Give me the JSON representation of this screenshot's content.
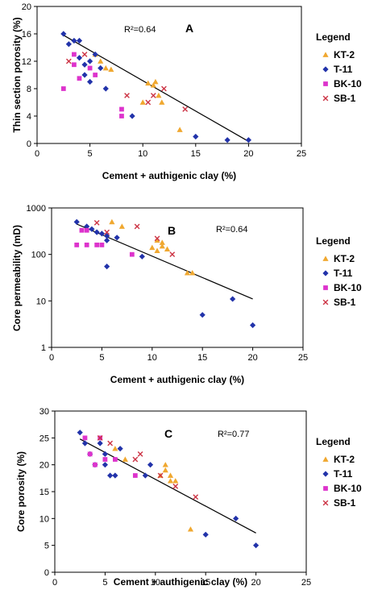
{
  "chart_data": [
    {
      "type": "scatter",
      "panel": "A",
      "xlabel": "Cement + authigenic clay (%)",
      "ylabel": "Thin section porosity (%)",
      "xlim": [
        0,
        25
      ],
      "ylim": [
        0,
        20
      ],
      "y_scale": "linear",
      "xticks": [
        "0",
        "5",
        "10",
        "15",
        "20",
        "25"
      ],
      "yticks": [
        "0",
        "4",
        "8",
        "12",
        "16",
        "20"
      ],
      "annotation": "R²=0.64",
      "legend_title": "Legend",
      "trendline": [
        [
          2.5,
          15.8
        ],
        [
          20,
          0.3
        ]
      ],
      "series": [
        {
          "name": "KT-2",
          "marker": "triangle",
          "color": "#F0A830",
          "points": [
            [
              5.5,
              13
            ],
            [
              6,
              12
            ],
            [
              6.5,
              11
            ],
            [
              7,
              10.8
            ],
            [
              10,
              6
            ],
            [
              10.5,
              8.8
            ],
            [
              11,
              8.5
            ],
            [
              11.2,
              9
            ],
            [
              11.5,
              7
            ],
            [
              11.8,
              6
            ],
            [
              13.5,
              2
            ]
          ]
        },
        {
          "name": "T-11",
          "marker": "diamond",
          "color": "#2233AA",
          "points": [
            [
              2.5,
              16
            ],
            [
              3,
              14.5
            ],
            [
              3.5,
              15
            ],
            [
              4,
              15
            ],
            [
              4,
              12.5
            ],
            [
              4.5,
              11.5
            ],
            [
              4.5,
              10
            ],
            [
              5,
              12
            ],
            [
              5,
              9
            ],
            [
              5.5,
              13
            ],
            [
              6,
              11
            ],
            [
              6.5,
              8
            ],
            [
              9,
              4
            ],
            [
              15,
              1
            ],
            [
              18,
              0.5
            ],
            [
              20,
              0.5
            ]
          ]
        },
        {
          "name": "BK-10",
          "marker": "square",
          "color": "#DD33CC",
          "points": [
            [
              2.5,
              8
            ],
            [
              3.5,
              13
            ],
            [
              3.5,
              11.5
            ],
            [
              4,
              9.5
            ],
            [
              5,
              11
            ],
            [
              5.5,
              10
            ],
            [
              8,
              4
            ],
            [
              8,
              5
            ]
          ]
        },
        {
          "name": "SB-1",
          "marker": "x",
          "color": "#CC3344",
          "points": [
            [
              3,
              12
            ],
            [
              4.5,
              13
            ],
            [
              8.5,
              7
            ],
            [
              10.5,
              6
            ],
            [
              11,
              7
            ],
            [
              12,
              8
            ],
            [
              14,
              5
            ]
          ]
        }
      ]
    },
    {
      "type": "scatter",
      "panel": "B",
      "xlabel": "Cement + authigenic clay (%)",
      "ylabel": "Core permeability (mD)",
      "xlim": [
        0,
        25
      ],
      "ylim": [
        1,
        1000
      ],
      "y_scale": "log",
      "xticks": [
        "0",
        "5",
        "10",
        "15",
        "20",
        "25"
      ],
      "yticks": [
        "1",
        "10",
        "100",
        "1000"
      ],
      "annotation": "R²=0.64",
      "legend_title": "Legend",
      "trendline": [
        [
          2.5,
          450
        ],
        [
          20,
          11
        ]
      ],
      "series": [
        {
          "name": "KT-2",
          "marker": "triangle",
          "color": "#F0A830",
          "points": [
            [
              6,
              500
            ],
            [
              7,
              400
            ],
            [
              10,
              140
            ],
            [
              10.5,
              200
            ],
            [
              10.5,
              120
            ],
            [
              11,
              180
            ],
            [
              11,
              150
            ],
            [
              11.5,
              130
            ],
            [
              13.5,
              40
            ],
            [
              14,
              40
            ]
          ]
        },
        {
          "name": "T-11",
          "marker": "diamond",
          "color": "#2233AA",
          "points": [
            [
              2.5,
              500
            ],
            [
              3.5,
              400
            ],
            [
              4,
              350
            ],
            [
              4.5,
              300
            ],
            [
              5,
              280
            ],
            [
              5.5,
              200
            ],
            [
              5.5,
              250
            ],
            [
              5.5,
              55
            ],
            [
              6.5,
              230
            ],
            [
              9,
              90
            ],
            [
              15,
              5
            ],
            [
              18,
              11
            ],
            [
              20,
              3
            ]
          ]
        },
        {
          "name": "BK-10",
          "marker": "square",
          "color": "#DD33CC",
          "points": [
            [
              2.5,
              160
            ],
            [
              3,
              330
            ],
            [
              3.5,
              330
            ],
            [
              3.5,
              160
            ],
            [
              4.5,
              160
            ],
            [
              5,
              160
            ],
            [
              8,
              100
            ]
          ]
        },
        {
          "name": "SB-1",
          "marker": "x",
          "color": "#CC3344",
          "points": [
            [
              4.5,
              480
            ],
            [
              5.5,
              300
            ],
            [
              8.5,
              400
            ],
            [
              10.5,
              220
            ],
            [
              12,
              100
            ]
          ]
        }
      ]
    },
    {
      "type": "scatter",
      "panel": "C",
      "xlabel": "Cement + authigenic clay (%)",
      "ylabel": "Core porosity (%)",
      "xlim": [
        0,
        25
      ],
      "ylim": [
        0,
        30
      ],
      "y_scale": "linear",
      "xticks": [
        "0",
        "5",
        "10",
        "15",
        "20",
        "25"
      ],
      "yticks": [
        "0",
        "5",
        "10",
        "15",
        "20",
        "25",
        "30"
      ],
      "annotation": "R²=0.77",
      "legend_title": "Legend",
      "trendline": [
        [
          2.5,
          24.8
        ],
        [
          20,
          7.3
        ]
      ],
      "series": [
        {
          "name": "KT-2",
          "marker": "triangle",
          "color": "#F0A830",
          "points": [
            [
              6,
              23
            ],
            [
              7,
              21
            ],
            [
              10.5,
              18
            ],
            [
              11,
              20
            ],
            [
              11,
              19
            ],
            [
              11.5,
              18
            ],
            [
              11.5,
              17
            ],
            [
              12,
              17
            ],
            [
              13.5,
              8
            ]
          ]
        },
        {
          "name": "T-11",
          "marker": "diamond",
          "color": "#2233AA",
          "points": [
            [
              2.5,
              26
            ],
            [
              3,
              24
            ],
            [
              3.5,
              22
            ],
            [
              4,
              20
            ],
            [
              4.5,
              24
            ],
            [
              5,
              22
            ],
            [
              5,
              20
            ],
            [
              5.5,
              18
            ],
            [
              6,
              18
            ],
            [
              6.5,
              23
            ],
            [
              9,
              18
            ],
            [
              9.5,
              20
            ],
            [
              15,
              7
            ],
            [
              18,
              10
            ],
            [
              20,
              5
            ]
          ]
        },
        {
          "name": "BK-10",
          "marker": "square",
          "color": "#DD33CC",
          "points": [
            [
              3,
              25
            ],
            [
              3.5,
              22
            ],
            [
              4,
              20
            ],
            [
              4.5,
              25
            ],
            [
              5,
              21
            ],
            [
              6,
              21
            ],
            [
              8,
              18
            ]
          ]
        },
        {
          "name": "SB-1",
          "marker": "x",
          "color": "#CC3344",
          "points": [
            [
              4.5,
              25
            ],
            [
              5.5,
              24
            ],
            [
              8,
              21
            ],
            [
              8.5,
              22
            ],
            [
              10.5,
              18
            ],
            [
              12,
              16
            ],
            [
              14,
              14
            ]
          ]
        }
      ]
    }
  ]
}
